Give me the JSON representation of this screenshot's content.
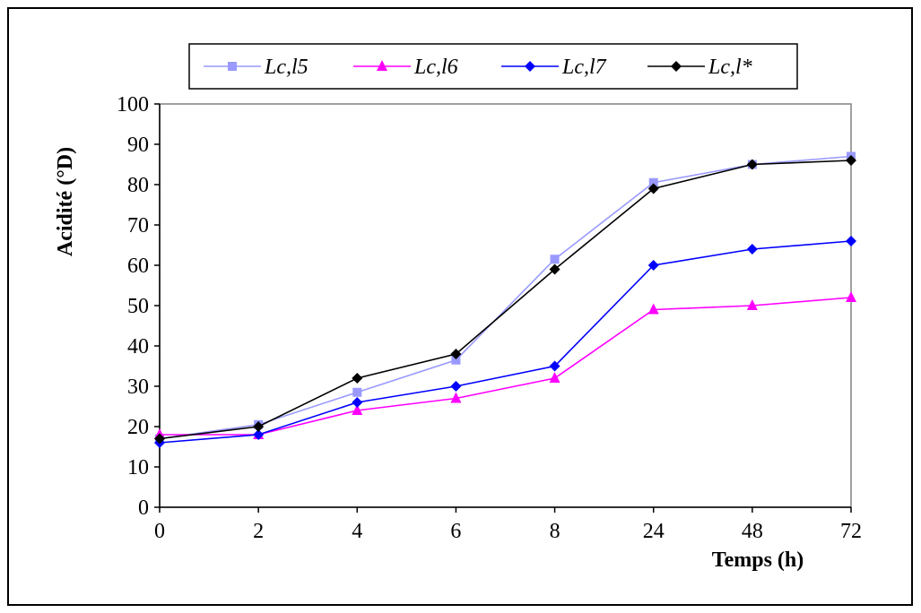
{
  "chart_data": {
    "type": "line",
    "categories": [
      "0",
      "2",
      "4",
      "6",
      "8",
      "24",
      "48",
      "72"
    ],
    "ylabel": "Acidité (°D)",
    "xlabel": "Temps (h)",
    "ylim": [
      0,
      100
    ],
    "yticks": [
      0,
      10,
      20,
      30,
      40,
      50,
      60,
      70,
      80,
      90,
      100
    ],
    "legend_position": "top",
    "grid": false,
    "series": [
      {
        "name": "Lc,l5",
        "color": "#9999ff",
        "marker": "square",
        "values": [
          17,
          20.5,
          28.5,
          36.5,
          61.5,
          80.5,
          85,
          87
        ]
      },
      {
        "name": "Lc,l6",
        "color": "#ff00ff",
        "marker": "triangle",
        "values": [
          18,
          18,
          24,
          27,
          32,
          49,
          50,
          52
        ]
      },
      {
        "name": "Lc,l7",
        "color": "#0000ff",
        "marker": "diamond",
        "values": [
          16,
          18,
          26,
          30,
          35,
          60,
          64,
          66
        ]
      },
      {
        "name": "Lc,l*",
        "color": "#000000",
        "marker": "diamond",
        "values": [
          17,
          20,
          32,
          38,
          59,
          79,
          85,
          86
        ]
      }
    ]
  }
}
